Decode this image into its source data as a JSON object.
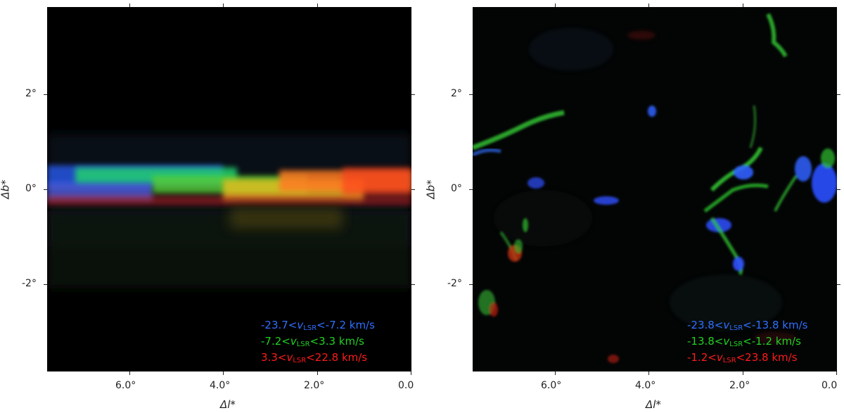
{
  "panels": [
    {
      "id": "left",
      "x_ticks": [
        "6.0°",
        "4.0°",
        "2.0°",
        "0.0"
      ],
      "y_ticks": [
        "2°",
        "0°",
        "-2°"
      ],
      "xlabel": "Δl*",
      "ylabel": "Δb*",
      "legend": [
        {
          "pre": "-23.7<",
          "v": "v",
          "sub": "LSR",
          "post": "<-7.2 km/s",
          "color": "#2f6fff"
        },
        {
          "pre": "-7.2<",
          "v": "v",
          "sub": "LSR",
          "post": "<3.3 km/s",
          "color": "#22d022"
        },
        {
          "pre": "3.3<",
          "v": "v",
          "sub": "LSR",
          "post": "<22.8 km/s",
          "color": "#ff1a1a"
        }
      ]
    },
    {
      "id": "right",
      "x_ticks": [
        "6.0°",
        "4.0°",
        "2.0°",
        "0.0"
      ],
      "y_ticks": [
        "2°",
        "0°",
        "-2°"
      ],
      "xlabel": "Δl*",
      "ylabel": "Δb*",
      "legend": [
        {
          "pre": "-23.8<",
          "v": "v",
          "sub": "LSR",
          "post": "<-13.8 km/s",
          "color": "#2f6fff"
        },
        {
          "pre": "-13.8<",
          "v": "v",
          "sub": "LSR",
          "post": "<-1.2 km/s",
          "color": "#22d022"
        },
        {
          "pre": "-1.2<",
          "v": "v",
          "sub": "LSR",
          "post": "<23.8 km/s",
          "color": "#ff1a1a"
        }
      ]
    }
  ],
  "colors": {
    "blue": "#2f6fff",
    "green": "#22d022",
    "red": "#ff1a1a",
    "background": "#000000"
  }
}
